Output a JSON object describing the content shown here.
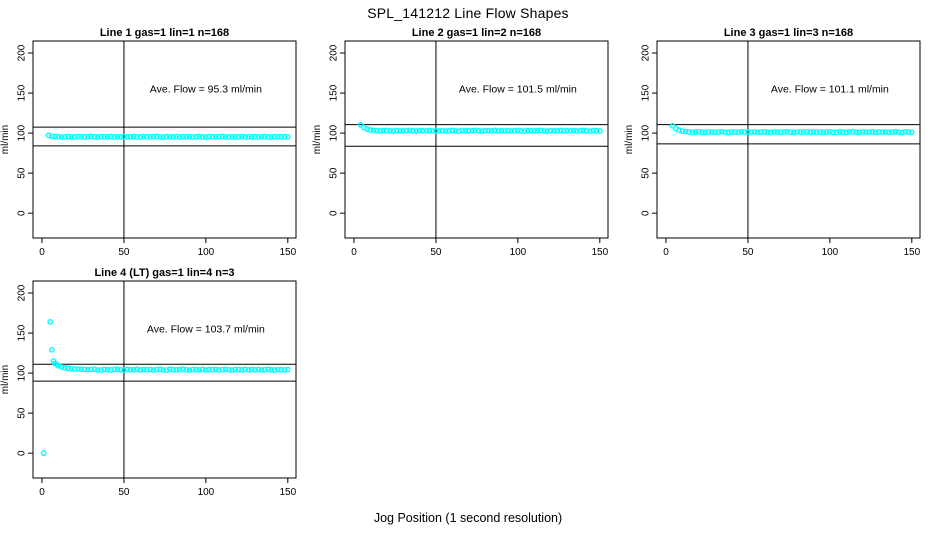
{
  "page_title": "SPL_141212  Line Flow Shapes",
  "xlabel": "Jog Position (1 second resolution)",
  "ylabel": "ml/min",
  "colors": {
    "points": "#00FFFF",
    "axis": "#000000",
    "background": "#FFFFFF"
  },
  "axes": {
    "x_ticks": [
      0,
      50,
      100,
      150
    ],
    "y_ticks": [
      0,
      50,
      100,
      150,
      200
    ],
    "xlim": [
      -5.5,
      155
    ],
    "ylim": [
      -31,
      215
    ]
  },
  "chart_data": [
    {
      "type": "scatter",
      "title": "Line 1 gas=1 lin=1 n=168",
      "n": 168,
      "ave_flow": 95.3,
      "ave_flow_label": "Ave. Flow =  95.3  ml/min",
      "vline_x": 50,
      "hlines": [
        107.5,
        84
      ],
      "annotation_pos": {
        "x": 100,
        "y": 151
      },
      "points": [
        [
          4,
          97.2
        ],
        [
          6,
          96.0
        ],
        [
          8,
          95.6
        ],
        [
          10,
          95.5
        ],
        [
          12,
          95.0
        ],
        [
          14,
          95.4
        ],
        [
          16,
          95.7
        ],
        [
          18,
          95.1
        ],
        [
          20,
          94.9
        ],
        [
          22,
          95.6
        ],
        [
          24,
          95.3
        ],
        [
          26,
          95.1
        ],
        [
          28,
          95.5
        ],
        [
          30,
          95.8
        ],
        [
          32,
          95.2
        ],
        [
          34,
          94.8
        ],
        [
          36,
          95.5
        ],
        [
          38,
          95.3
        ],
        [
          40,
          95.2
        ],
        [
          42,
          95.7
        ],
        [
          44,
          95.0
        ],
        [
          46,
          95.4
        ],
        [
          48,
          95.2
        ],
        [
          50,
          95.5
        ],
        [
          52,
          95.0
        ],
        [
          54,
          95.4
        ],
        [
          56,
          95.7
        ],
        [
          58,
          95.1
        ],
        [
          60,
          94.9
        ],
        [
          62,
          95.6
        ],
        [
          64,
          95.3
        ],
        [
          66,
          95.1
        ],
        [
          68,
          95.5
        ],
        [
          70,
          95.8
        ],
        [
          72,
          95.2
        ],
        [
          74,
          94.8
        ],
        [
          76,
          95.5
        ],
        [
          78,
          95.3
        ],
        [
          80,
          95.2
        ],
        [
          82,
          95.7
        ],
        [
          84,
          95.0
        ],
        [
          86,
          95.4
        ],
        [
          88,
          95.2
        ],
        [
          90,
          95.5
        ],
        [
          92,
          95.0
        ],
        [
          94,
          95.4
        ],
        [
          96,
          95.7
        ],
        [
          98,
          95.1
        ],
        [
          100,
          94.9
        ],
        [
          102,
          95.6
        ],
        [
          104,
          95.3
        ],
        [
          106,
          95.1
        ],
        [
          108,
          95.5
        ],
        [
          110,
          95.8
        ],
        [
          112,
          95.2
        ],
        [
          114,
          94.8
        ],
        [
          116,
          95.5
        ],
        [
          118,
          95.3
        ],
        [
          120,
          95.2
        ],
        [
          122,
          95.7
        ],
        [
          124,
          95.0
        ],
        [
          126,
          95.4
        ],
        [
          128,
          95.2
        ],
        [
          130,
          95.5
        ],
        [
          132,
          95.0
        ],
        [
          134,
          95.4
        ],
        [
          136,
          95.7
        ],
        [
          138,
          95.1
        ],
        [
          140,
          94.9
        ],
        [
          142,
          95.6
        ],
        [
          144,
          95.3
        ],
        [
          146,
          95.1
        ],
        [
          148,
          95.5
        ],
        [
          150,
          95.2
        ]
      ]
    },
    {
      "type": "scatter",
      "title": "Line 2 gas=1 lin=2 n=168",
      "n": 168,
      "ave_flow": 101.5,
      "ave_flow_label": "Ave. Flow =  101.5  ml/min",
      "vline_x": 50,
      "hlines": [
        110.5,
        83.5
      ],
      "annotation_pos": {
        "x": 100,
        "y": 151
      },
      "points": [
        [
          4,
          110.2
        ],
        [
          6,
          107.0
        ],
        [
          8,
          105.2
        ],
        [
          10,
          103.9
        ],
        [
          12,
          103.4
        ],
        [
          14,
          103.1
        ],
        [
          16,
          102.6
        ],
        [
          18,
          103.0
        ],
        [
          20,
          103.3
        ],
        [
          22,
          102.7
        ],
        [
          24,
          102.5
        ],
        [
          26,
          103.2
        ],
        [
          28,
          102.9
        ],
        [
          30,
          102.7
        ],
        [
          32,
          103.1
        ],
        [
          34,
          103.4
        ],
        [
          36,
          102.8
        ],
        [
          38,
          102.4
        ],
        [
          40,
          103.1
        ],
        [
          42,
          102.9
        ],
        [
          44,
          102.8
        ],
        [
          46,
          103.3
        ],
        [
          48,
          102.6
        ],
        [
          50,
          103.0
        ],
        [
          52,
          102.8
        ],
        [
          54,
          103.1
        ],
        [
          56,
          102.6
        ],
        [
          58,
          103.0
        ],
        [
          60,
          103.3
        ],
        [
          62,
          102.7
        ],
        [
          64,
          102.5
        ],
        [
          66,
          103.2
        ],
        [
          68,
          102.9
        ],
        [
          70,
          102.7
        ],
        [
          72,
          103.1
        ],
        [
          74,
          103.4
        ],
        [
          76,
          102.8
        ],
        [
          78,
          102.4
        ],
        [
          80,
          103.1
        ],
        [
          82,
          102.9
        ],
        [
          84,
          102.8
        ],
        [
          86,
          103.3
        ],
        [
          88,
          102.6
        ],
        [
          90,
          103.0
        ],
        [
          92,
          102.8
        ],
        [
          94,
          103.1
        ],
        [
          96,
          102.6
        ],
        [
          98,
          103.0
        ],
        [
          100,
          103.3
        ],
        [
          102,
          102.7
        ],
        [
          104,
          102.5
        ],
        [
          106,
          103.2
        ],
        [
          108,
          102.9
        ],
        [
          110,
          102.7
        ],
        [
          112,
          103.1
        ],
        [
          114,
          103.4
        ],
        [
          116,
          102.8
        ],
        [
          118,
          102.4
        ],
        [
          120,
          103.1
        ],
        [
          122,
          102.9
        ],
        [
          124,
          102.8
        ],
        [
          126,
          103.3
        ],
        [
          128,
          102.6
        ],
        [
          130,
          103.0
        ],
        [
          132,
          102.8
        ],
        [
          134,
          103.1
        ],
        [
          136,
          102.6
        ],
        [
          138,
          103.0
        ],
        [
          140,
          103.3
        ],
        [
          142,
          102.7
        ],
        [
          144,
          102.5
        ],
        [
          146,
          103.2
        ],
        [
          148,
          102.9
        ],
        [
          150,
          102.7
        ]
      ]
    },
    {
      "type": "scatter",
      "title": "Line 3 gas=1 lin=3 n=168",
      "n": 168,
      "ave_flow": 101.1,
      "ave_flow_label": "Ave. Flow =  101.1  ml/min",
      "vline_x": 50,
      "hlines": [
        110.5,
        86.5
      ],
      "annotation_pos": {
        "x": 100,
        "y": 151
      },
      "points": [
        [
          4,
          109.0
        ],
        [
          6,
          105.6
        ],
        [
          8,
          103.6
        ],
        [
          10,
          102.4
        ],
        [
          12,
          101.9
        ],
        [
          14,
          101.4
        ],
        [
          16,
          100.9
        ],
        [
          18,
          101.3
        ],
        [
          20,
          101.6
        ],
        [
          22,
          101.0
        ],
        [
          24,
          100.8
        ],
        [
          26,
          101.5
        ],
        [
          28,
          101.2
        ],
        [
          30,
          101.0
        ],
        [
          32,
          101.4
        ],
        [
          34,
          101.7
        ],
        [
          36,
          101.1
        ],
        [
          38,
          100.7
        ],
        [
          40,
          101.4
        ],
        [
          42,
          101.2
        ],
        [
          44,
          101.1
        ],
        [
          46,
          101.6
        ],
        [
          48,
          100.9
        ],
        [
          50,
          101.3
        ],
        [
          52,
          101.1
        ],
        [
          54,
          101.4
        ],
        [
          56,
          100.9
        ],
        [
          58,
          101.3
        ],
        [
          60,
          101.6
        ],
        [
          62,
          101.0
        ],
        [
          64,
          100.8
        ],
        [
          66,
          101.5
        ],
        [
          68,
          101.2
        ],
        [
          70,
          101.0
        ],
        [
          72,
          101.4
        ],
        [
          74,
          101.7
        ],
        [
          76,
          101.1
        ],
        [
          78,
          100.7
        ],
        [
          80,
          101.4
        ],
        [
          82,
          101.2
        ],
        [
          84,
          101.1
        ],
        [
          86,
          101.6
        ],
        [
          88,
          100.9
        ],
        [
          90,
          101.3
        ],
        [
          92,
          101.1
        ],
        [
          94,
          101.4
        ],
        [
          96,
          100.9
        ],
        [
          98,
          101.3
        ],
        [
          100,
          101.6
        ],
        [
          102,
          101.0
        ],
        [
          104,
          100.8
        ],
        [
          106,
          101.5
        ],
        [
          108,
          101.2
        ],
        [
          110,
          101.0
        ],
        [
          112,
          101.4
        ],
        [
          114,
          101.7
        ],
        [
          116,
          101.1
        ],
        [
          118,
          100.7
        ],
        [
          120,
          101.4
        ],
        [
          122,
          101.2
        ],
        [
          124,
          101.1
        ],
        [
          126,
          101.6
        ],
        [
          128,
          100.9
        ],
        [
          130,
          101.3
        ],
        [
          132,
          101.1
        ],
        [
          134,
          101.4
        ],
        [
          136,
          100.9
        ],
        [
          138,
          101.3
        ],
        [
          140,
          101.6
        ],
        [
          142,
          101.0
        ],
        [
          144,
          100.8
        ],
        [
          146,
          101.5
        ],
        [
          148,
          101.2
        ],
        [
          150,
          101.0
        ]
      ]
    },
    {
      "type": "scatter",
      "title": "Line 4 (LT) gas=1 lin=4 n=3",
      "n": 3,
      "ave_flow": 103.7,
      "ave_flow_label": "Ave. Flow =  103.7  ml/min",
      "vline_x": 50,
      "hlines": [
        111,
        90
      ],
      "annotation_pos": {
        "x": 100,
        "y": 151
      },
      "points": [
        [
          1,
          0
        ],
        [
          5,
          164
        ],
        [
          6,
          129
        ],
        [
          7,
          115
        ],
        [
          8,
          112.0
        ],
        [
          9,
          110.5
        ],
        [
          10,
          109.2
        ],
        [
          12,
          107.6
        ],
        [
          14,
          106.6
        ],
        [
          16,
          106.0
        ],
        [
          18,
          105.5
        ],
        [
          20,
          105.2
        ],
        [
          22,
          105.0
        ],
        [
          24,
          104.8
        ],
        [
          26,
          104.6
        ],
        [
          28,
          104.1
        ],
        [
          30,
          104.5
        ],
        [
          32,
          104.9
        ],
        [
          34,
          103.9
        ],
        [
          36,
          103.7
        ],
        [
          38,
          104.8
        ],
        [
          40,
          104.3
        ],
        [
          42,
          104.0
        ],
        [
          44,
          104.6
        ],
        [
          46,
          105.0
        ],
        [
          48,
          104.1
        ],
        [
          50,
          103.6
        ],
        [
          52,
          104.7
        ],
        [
          54,
          104.3
        ],
        [
          56,
          104.1
        ],
        [
          58,
          104.9
        ],
        [
          60,
          103.9
        ],
        [
          62,
          104.5
        ],
        [
          64,
          104.2
        ],
        [
          66,
          104.6
        ],
        [
          68,
          103.9
        ],
        [
          70,
          104.4
        ],
        [
          72,
          104.9
        ],
        [
          74,
          104.0
        ],
        [
          76,
          103.7
        ],
        [
          78,
          104.7
        ],
        [
          80,
          104.3
        ],
        [
          82,
          104.0
        ],
        [
          84,
          104.5
        ],
        [
          86,
          105.0
        ],
        [
          88,
          104.1
        ],
        [
          90,
          103.7
        ],
        [
          92,
          104.6
        ],
        [
          94,
          104.3
        ],
        [
          96,
          104.1
        ],
        [
          98,
          104.8
        ],
        [
          100,
          103.9
        ],
        [
          102,
          104.4
        ],
        [
          104,
          104.2
        ],
        [
          106,
          104.6
        ],
        [
          108,
          103.9
        ],
        [
          110,
          104.3
        ],
        [
          112,
          104.8
        ],
        [
          114,
          104.0
        ],
        [
          116,
          103.7
        ],
        [
          118,
          104.6
        ],
        [
          120,
          104.3
        ],
        [
          122,
          104.1
        ],
        [
          124,
          104.7
        ],
        [
          126,
          103.9
        ],
        [
          128,
          104.4
        ],
        [
          130,
          104.1
        ],
        [
          132,
          104.5
        ],
        [
          134,
          103.9
        ],
        [
          136,
          104.3
        ],
        [
          138,
          104.7
        ],
        [
          140,
          104.0
        ],
        [
          142,
          103.8
        ],
        [
          144,
          104.5
        ],
        [
          146,
          104.2
        ],
        [
          148,
          104.0
        ],
        [
          150,
          104.4
        ]
      ]
    }
  ]
}
